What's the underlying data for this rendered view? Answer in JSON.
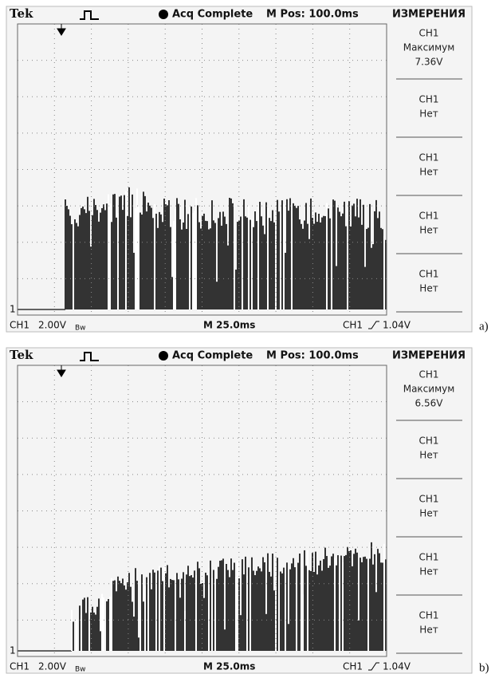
{
  "panels": [
    {
      "header": {
        "brand": "Tek",
        "status": "Acq Complete",
        "position": "M Pos: 100.0ms",
        "menu_title": "ИЗМЕРЕНИЯ"
      },
      "menu": [
        {
          "channel": "CH1",
          "label": "Максимум",
          "value": "7.36V"
        },
        {
          "channel": "CH1",
          "label": "Нет"
        },
        {
          "channel": "CH1",
          "label": "Нет"
        },
        {
          "channel": "CH1",
          "label": "Нет"
        },
        {
          "channel": "CH1",
          "label": "Нет"
        }
      ],
      "footer": {
        "channel": "CH1",
        "scale": "2.00V",
        "bandwidth": "Bw",
        "timebase": "M 25.0ms",
        "trigger_channel": "CH1",
        "trigger_level": "1.04V"
      },
      "ground_marker": "1",
      "caption": "a)"
    },
    {
      "header": {
        "brand": "Tek",
        "status": "Acq Complete",
        "position": "M Pos: 100.0ms",
        "menu_title": "ИЗМЕРЕНИЯ"
      },
      "menu": [
        {
          "channel": "CH1",
          "label": "Максимум",
          "value": "6.56V"
        },
        {
          "channel": "CH1",
          "label": "Нет"
        },
        {
          "channel": "CH1",
          "label": "Нет"
        },
        {
          "channel": "CH1",
          "label": "Нет"
        },
        {
          "channel": "CH1",
          "label": "Нет"
        }
      ],
      "footer": {
        "channel": "CH1",
        "scale": "2.00V",
        "bandwidth": "Bw",
        "timebase": "M 25.0ms",
        "trigger_channel": "CH1",
        "trigger_level": "1.04V"
      },
      "ground_marker": "1",
      "caption": "b)"
    }
  ]
}
